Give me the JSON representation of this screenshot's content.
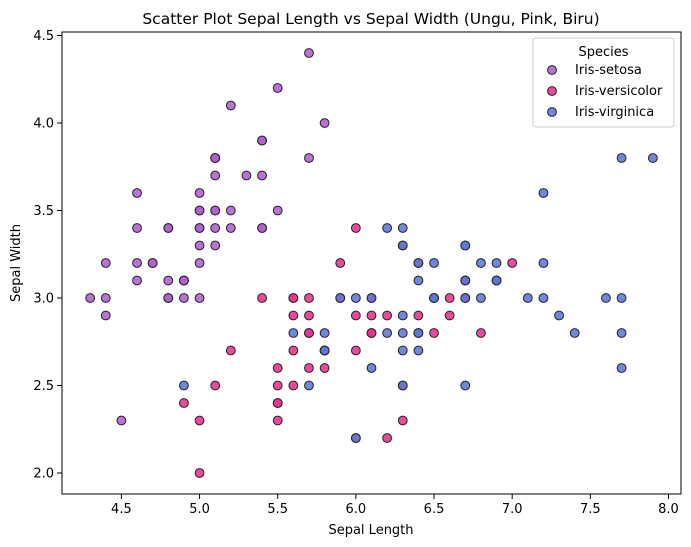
{
  "chart_data": {
    "type": "scatter",
    "title": "Scatter Plot Sepal Length vs Sepal Width (Ungu, Pink, Biru)",
    "xlabel": "Sepal Length",
    "ylabel": "Sepal Width",
    "xlim": [
      4.12,
      8.08
    ],
    "ylim": [
      1.88,
      4.52
    ],
    "x_ticks": [
      "4.5",
      "5.0",
      "5.5",
      "6.0",
      "6.5",
      "7.0",
      "7.5",
      "8.0"
    ],
    "y_ticks": [
      "2.0",
      "2.5",
      "3.0",
      "3.5",
      "4.0",
      "4.5"
    ],
    "grid": false,
    "legend": {
      "title": "Species",
      "placement": "top-right"
    },
    "series": [
      {
        "name": "Iris-setosa",
        "color": "#b05fd0",
        "points": [
          [
            5.1,
            3.5
          ],
          [
            4.9,
            3.0
          ],
          [
            4.7,
            3.2
          ],
          [
            4.6,
            3.1
          ],
          [
            5.0,
            3.6
          ],
          [
            5.4,
            3.9
          ],
          [
            4.6,
            3.4
          ],
          [
            5.0,
            3.4
          ],
          [
            4.4,
            2.9
          ],
          [
            4.9,
            3.1
          ],
          [
            5.4,
            3.7
          ],
          [
            4.8,
            3.4
          ],
          [
            4.8,
            3.0
          ],
          [
            4.3,
            3.0
          ],
          [
            5.8,
            4.0
          ],
          [
            5.7,
            4.4
          ],
          [
            5.4,
            3.9
          ],
          [
            5.1,
            3.5
          ],
          [
            5.7,
            3.8
          ],
          [
            5.1,
            3.8
          ],
          [
            5.4,
            3.4
          ],
          [
            5.1,
            3.7
          ],
          [
            4.6,
            3.6
          ],
          [
            5.1,
            3.3
          ],
          [
            4.8,
            3.4
          ],
          [
            5.0,
            3.0
          ],
          [
            5.0,
            3.4
          ],
          [
            5.2,
            3.5
          ],
          [
            5.2,
            3.4
          ],
          [
            4.7,
            3.2
          ],
          [
            4.8,
            3.1
          ],
          [
            5.4,
            3.4
          ],
          [
            5.2,
            4.1
          ],
          [
            5.5,
            4.2
          ],
          [
            4.9,
            3.1
          ],
          [
            5.0,
            3.2
          ],
          [
            5.5,
            3.5
          ],
          [
            4.9,
            3.1
          ],
          [
            4.4,
            3.0
          ],
          [
            5.1,
            3.4
          ],
          [
            5.0,
            3.5
          ],
          [
            4.5,
            2.3
          ],
          [
            4.4,
            3.2
          ],
          [
            5.0,
            3.5
          ],
          [
            5.1,
            3.8
          ],
          [
            4.8,
            3.0
          ],
          [
            5.1,
            3.8
          ],
          [
            4.6,
            3.2
          ],
          [
            5.3,
            3.7
          ],
          [
            5.0,
            3.3
          ]
        ]
      },
      {
        "name": "Iris-versicolor",
        "color": "#e8308e",
        "points": [
          [
            7.0,
            3.2
          ],
          [
            6.4,
            3.2
          ],
          [
            6.9,
            3.1
          ],
          [
            5.5,
            2.3
          ],
          [
            6.5,
            2.8
          ],
          [
            5.7,
            2.8
          ],
          [
            6.3,
            3.3
          ],
          [
            4.9,
            2.4
          ],
          [
            6.6,
            2.9
          ],
          [
            5.2,
            2.7
          ],
          [
            5.0,
            2.0
          ],
          [
            5.9,
            3.0
          ],
          [
            6.0,
            2.2
          ],
          [
            6.1,
            2.9
          ],
          [
            5.6,
            2.9
          ],
          [
            6.7,
            3.1
          ],
          [
            5.6,
            3.0
          ],
          [
            5.8,
            2.7
          ],
          [
            6.2,
            2.2
          ],
          [
            5.6,
            2.5
          ],
          [
            5.9,
            3.2
          ],
          [
            6.1,
            2.8
          ],
          [
            6.3,
            2.5
          ],
          [
            6.1,
            2.8
          ],
          [
            6.4,
            2.9
          ],
          [
            6.6,
            3.0
          ],
          [
            6.8,
            2.8
          ],
          [
            6.7,
            3.0
          ],
          [
            6.0,
            2.9
          ],
          [
            5.7,
            2.6
          ],
          [
            5.5,
            2.4
          ],
          [
            5.5,
            2.4
          ],
          [
            5.8,
            2.7
          ],
          [
            6.0,
            2.7
          ],
          [
            5.4,
            3.0
          ],
          [
            6.0,
            3.4
          ],
          [
            6.7,
            3.1
          ],
          [
            6.3,
            2.3
          ],
          [
            5.6,
            3.0
          ],
          [
            5.5,
            2.5
          ],
          [
            5.5,
            2.6
          ],
          [
            6.1,
            3.0
          ],
          [
            5.8,
            2.6
          ],
          [
            5.0,
            2.3
          ],
          [
            5.6,
            2.7
          ],
          [
            5.7,
            3.0
          ],
          [
            5.7,
            2.9
          ],
          [
            6.2,
            2.9
          ],
          [
            5.1,
            2.5
          ],
          [
            5.7,
            2.8
          ]
        ]
      },
      {
        "name": "Iris-virginica",
        "color": "#5b78d8",
        "points": [
          [
            6.3,
            3.3
          ],
          [
            5.8,
            2.7
          ],
          [
            7.1,
            3.0
          ],
          [
            6.3,
            2.9
          ],
          [
            6.5,
            3.0
          ],
          [
            7.6,
            3.0
          ],
          [
            4.9,
            2.5
          ],
          [
            7.3,
            2.9
          ],
          [
            6.7,
            2.5
          ],
          [
            7.2,
            3.6
          ],
          [
            6.5,
            3.2
          ],
          [
            6.4,
            2.7
          ],
          [
            6.8,
            3.0
          ],
          [
            5.7,
            2.5
          ],
          [
            5.8,
            2.8
          ],
          [
            6.4,
            3.2
          ],
          [
            6.5,
            3.0
          ],
          [
            7.7,
            3.8
          ],
          [
            7.7,
            2.6
          ],
          [
            6.0,
            2.2
          ],
          [
            6.9,
            3.2
          ],
          [
            5.6,
            2.8
          ],
          [
            7.7,
            2.8
          ],
          [
            6.3,
            2.7
          ],
          [
            6.7,
            3.3
          ],
          [
            7.2,
            3.2
          ],
          [
            6.2,
            2.8
          ],
          [
            6.1,
            3.0
          ],
          [
            6.4,
            2.8
          ],
          [
            7.2,
            3.0
          ],
          [
            7.4,
            2.8
          ],
          [
            7.9,
            3.8
          ],
          [
            6.4,
            2.8
          ],
          [
            6.3,
            2.8
          ],
          [
            6.1,
            2.6
          ],
          [
            7.7,
            3.0
          ],
          [
            6.3,
            3.4
          ],
          [
            6.4,
            3.1
          ],
          [
            6.0,
            3.0
          ],
          [
            6.9,
            3.1
          ],
          [
            6.7,
            3.1
          ],
          [
            6.9,
            3.1
          ],
          [
            5.8,
            2.7
          ],
          [
            6.8,
            3.2
          ],
          [
            6.7,
            3.3
          ],
          [
            6.7,
            3.0
          ],
          [
            6.3,
            2.5
          ],
          [
            6.5,
            3.0
          ],
          [
            6.2,
            3.4
          ],
          [
            5.9,
            3.0
          ]
        ]
      }
    ]
  }
}
